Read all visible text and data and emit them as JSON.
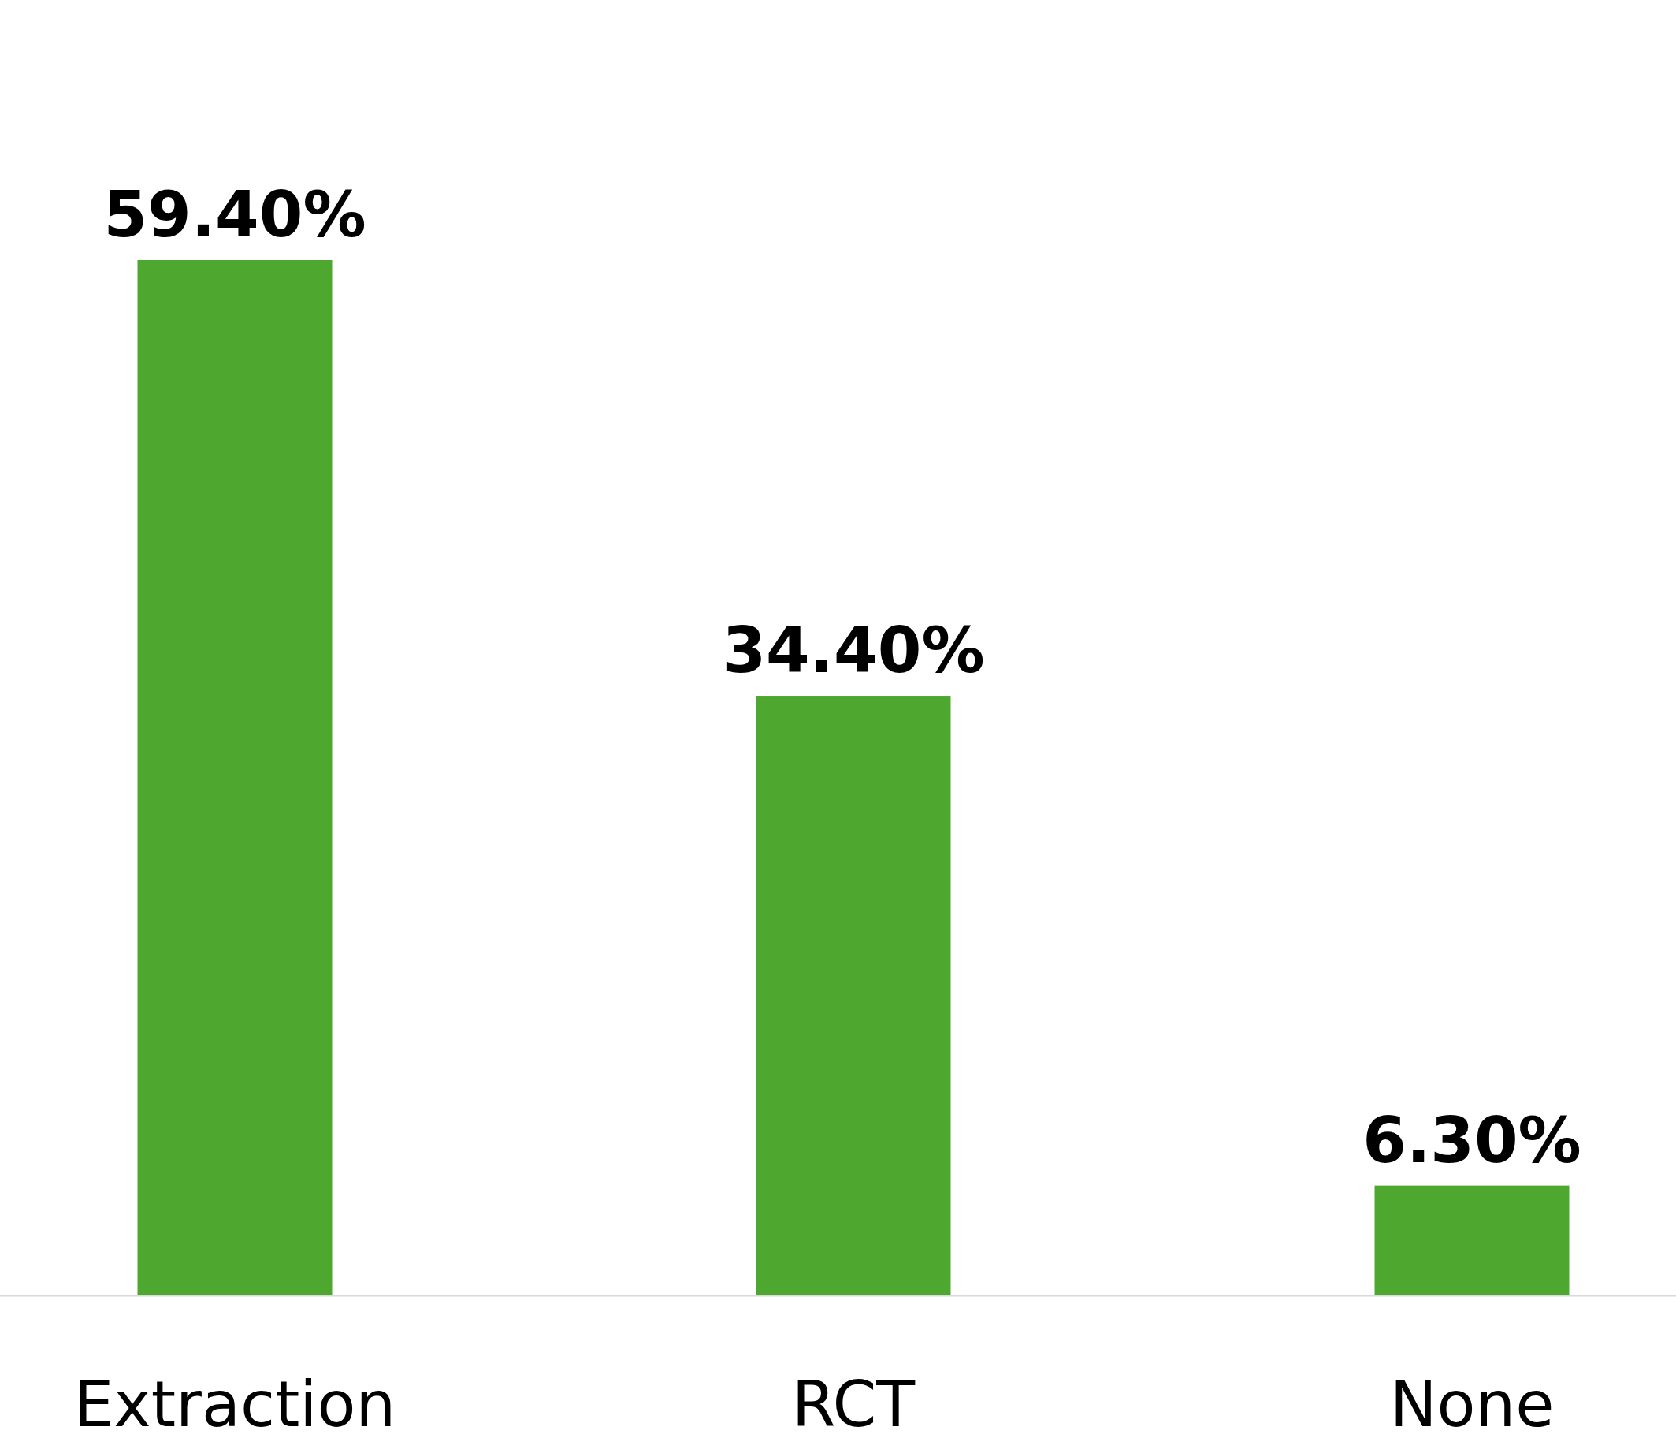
{
  "chart_data": {
    "type": "bar",
    "categories": [
      "Extraction",
      "RCT",
      "None"
    ],
    "values": [
      59.4,
      34.4,
      6.3
    ],
    "value_labels": [
      "59.40%",
      "34.40%",
      "6.30%"
    ],
    "color": "#4ea72e"
  }
}
